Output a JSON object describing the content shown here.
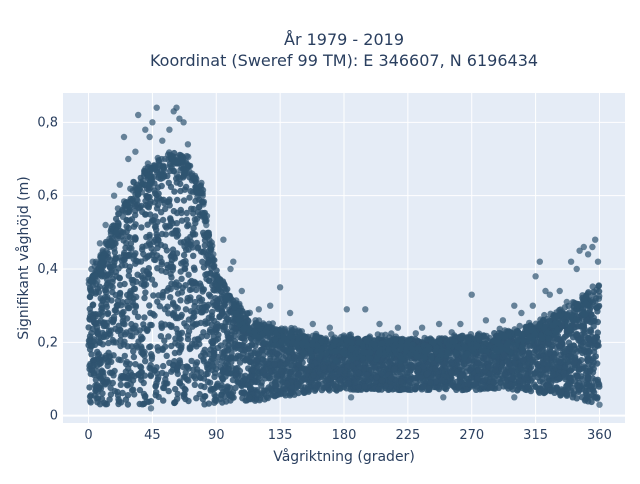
{
  "chart_data": {
    "type": "scatter",
    "title": [
      "År 1979 - 2019",
      "Koordinat (Sweref 99 TM): E 346607, N 6196434"
    ],
    "xlabel": "Vågriktning (grader)",
    "ylabel": "Signifikant våghöjd (m)",
    "xlim": [
      -18,
      378
    ],
    "ylim": [
      -0.02,
      0.88
    ],
    "xticks": [
      0,
      45,
      90,
      135,
      180,
      225,
      270,
      315,
      360
    ],
    "xtick_labels": [
      "0",
      "45",
      "90",
      "135",
      "180",
      "225",
      "270",
      "315",
      "360"
    ],
    "yticks": [
      0,
      0.2,
      0.4,
      0.6,
      0.8
    ],
    "ytick_labels": [
      "0",
      "0,2",
      "0,4",
      "0,6",
      "0,8"
    ],
    "grid": true,
    "marker_color": "#2f5470",
    "plot_background": "#e5ecf6",
    "envelope": {
      "x": [
        0,
        10,
        20,
        30,
        40,
        50,
        60,
        70,
        80,
        90,
        100,
        110,
        120,
        135,
        150,
        180,
        210,
        240,
        270,
        300,
        320,
        340,
        350,
        360
      ],
      "upper": [
        0.38,
        0.45,
        0.55,
        0.62,
        0.68,
        0.7,
        0.72,
        0.7,
        0.62,
        0.4,
        0.33,
        0.28,
        0.25,
        0.24,
        0.22,
        0.21,
        0.21,
        0.21,
        0.22,
        0.23,
        0.26,
        0.3,
        0.33,
        0.36
      ],
      "lower": [
        0.03,
        0.03,
        0.03,
        0.03,
        0.03,
        0.03,
        0.03,
        0.03,
        0.03,
        0.03,
        0.04,
        0.04,
        0.04,
        0.05,
        0.06,
        0.07,
        0.07,
        0.07,
        0.07,
        0.07,
        0.06,
        0.05,
        0.04,
        0.03
      ]
    },
    "outliers": [
      {
        "x": 3,
        "y": 0.42
      },
      {
        "x": 8,
        "y": 0.47
      },
      {
        "x": 12,
        "y": 0.52
      },
      {
        "x": 18,
        "y": 0.6
      },
      {
        "x": 22,
        "y": 0.63
      },
      {
        "x": 25,
        "y": 0.76
      },
      {
        "x": 28,
        "y": 0.7
      },
      {
        "x": 33,
        "y": 0.72
      },
      {
        "x": 35,
        "y": 0.82
      },
      {
        "x": 40,
        "y": 0.78
      },
      {
        "x": 43,
        "y": 0.76
      },
      {
        "x": 45,
        "y": 0.8
      },
      {
        "x": 48,
        "y": 0.84
      },
      {
        "x": 52,
        "y": 0.75
      },
      {
        "x": 57,
        "y": 0.78
      },
      {
        "x": 60,
        "y": 0.83
      },
      {
        "x": 62,
        "y": 0.84
      },
      {
        "x": 64,
        "y": 0.81
      },
      {
        "x": 67,
        "y": 0.8
      },
      {
        "x": 70,
        "y": 0.74
      },
      {
        "x": 73,
        "y": 0.66
      },
      {
        "x": 78,
        "y": 0.57
      },
      {
        "x": 83,
        "y": 0.52
      },
      {
        "x": 88,
        "y": 0.44
      },
      {
        "x": 95,
        "y": 0.48
      },
      {
        "x": 100,
        "y": 0.4
      },
      {
        "x": 102,
        "y": 0.42
      },
      {
        "x": 108,
        "y": 0.34
      },
      {
        "x": 120,
        "y": 0.29
      },
      {
        "x": 128,
        "y": 0.3
      },
      {
        "x": 135,
        "y": 0.35
      },
      {
        "x": 142,
        "y": 0.28
      },
      {
        "x": 158,
        "y": 0.25
      },
      {
        "x": 170,
        "y": 0.24
      },
      {
        "x": 182,
        "y": 0.29
      },
      {
        "x": 195,
        "y": 0.29
      },
      {
        "x": 205,
        "y": 0.25
      },
      {
        "x": 218,
        "y": 0.24
      },
      {
        "x": 235,
        "y": 0.24
      },
      {
        "x": 247,
        "y": 0.25
      },
      {
        "x": 262,
        "y": 0.25
      },
      {
        "x": 270,
        "y": 0.33
      },
      {
        "x": 280,
        "y": 0.26
      },
      {
        "x": 292,
        "y": 0.26
      },
      {
        "x": 300,
        "y": 0.3
      },
      {
        "x": 305,
        "y": 0.28
      },
      {
        "x": 313,
        "y": 0.3
      },
      {
        "x": 315,
        "y": 0.38
      },
      {
        "x": 318,
        "y": 0.42
      },
      {
        "x": 322,
        "y": 0.34
      },
      {
        "x": 325,
        "y": 0.33
      },
      {
        "x": 332,
        "y": 0.34
      },
      {
        "x": 337,
        "y": 0.31
      },
      {
        "x": 340,
        "y": 0.42
      },
      {
        "x": 344,
        "y": 0.4
      },
      {
        "x": 346,
        "y": 0.45
      },
      {
        "x": 349,
        "y": 0.46
      },
      {
        "x": 352,
        "y": 0.44
      },
      {
        "x": 355,
        "y": 0.46
      },
      {
        "x": 357,
        "y": 0.48
      },
      {
        "x": 359,
        "y": 0.42
      },
      {
        "x": 1,
        "y": 0.04
      },
      {
        "x": 44,
        "y": 0.02
      },
      {
        "x": 90,
        "y": 0.04
      },
      {
        "x": 185,
        "y": 0.05
      },
      {
        "x": 250,
        "y": 0.05
      },
      {
        "x": 300,
        "y": 0.05
      },
      {
        "x": 360,
        "y": 0.03
      }
    ]
  }
}
